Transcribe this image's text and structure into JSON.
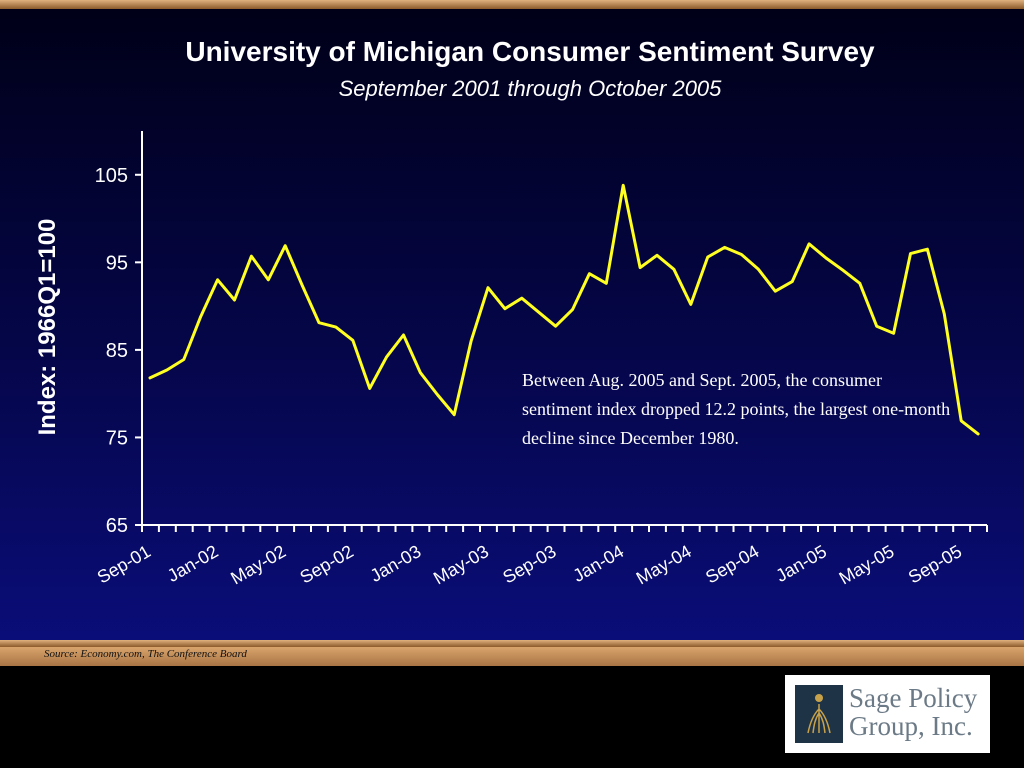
{
  "chart_data": {
    "type": "line",
    "title": "University of Michigan Consumer Sentiment Survey",
    "subtitle": "September 2001 through October 2005",
    "ylabel": "Index: 1966Q1=100",
    "xlabel": "",
    "ylim": [
      65,
      110
    ],
    "yticks": [
      65,
      75,
      85,
      95,
      105
    ],
    "x": [
      "Sep-01",
      "Oct-01",
      "Nov-01",
      "Dec-01",
      "Jan-02",
      "Feb-02",
      "Mar-02",
      "Apr-02",
      "May-02",
      "Jun-02",
      "Jul-02",
      "Aug-02",
      "Sep-02",
      "Oct-02",
      "Nov-02",
      "Dec-02",
      "Jan-03",
      "Feb-03",
      "Mar-03",
      "Apr-03",
      "May-03",
      "Jun-03",
      "Jul-03",
      "Aug-03",
      "Sep-03",
      "Oct-03",
      "Nov-03",
      "Dec-03",
      "Jan-04",
      "Feb-04",
      "Mar-04",
      "Apr-04",
      "May-04",
      "Jun-04",
      "Jul-04",
      "Aug-04",
      "Sep-04",
      "Oct-04",
      "Nov-04",
      "Dec-04",
      "Jan-05",
      "Feb-05",
      "Mar-05",
      "Apr-05",
      "May-05",
      "Jun-05",
      "Jul-05",
      "Aug-05",
      "Sep-05",
      "Oct-05"
    ],
    "xtick_labels": [
      "Sep-01",
      "Jan-02",
      "May-02",
      "Sep-02",
      "Jan-03",
      "May-03",
      "Sep-03",
      "Jan-04",
      "May-04",
      "Sep-04",
      "Jan-05",
      "May-05",
      "Sep-05"
    ],
    "series": [
      {
        "values": [
          81.8,
          82.7,
          83.9,
          88.8,
          93.0,
          90.7,
          95.7,
          93.0,
          96.9,
          92.4,
          88.1,
          87.6,
          86.1,
          80.6,
          84.2,
          86.7,
          82.4,
          79.9,
          77.6,
          86.0,
          92.1,
          89.7,
          90.9,
          89.3,
          87.7,
          89.6,
          93.7,
          92.6,
          103.8,
          94.4,
          95.8,
          94.2,
          90.2,
          95.6,
          96.7,
          95.9,
          94.2,
          91.7,
          92.8,
          97.1,
          95.5,
          94.1,
          92.6,
          87.7,
          86.9,
          96.0,
          96.5,
          89.1,
          76.9,
          75.4
        ],
        "color": "#ffff22"
      }
    ],
    "annotation": "Between Aug. 2005 and Sept. 2005, the consumer sentiment index dropped 12.2 points, the largest one-month decline since December 1980.",
    "grid": false,
    "legend": "none"
  },
  "footer": {
    "source": "Source: Economy.com, The Conference Board",
    "logo_line1": "Sage Policy",
    "logo_line2": "Group, Inc."
  },
  "colors": {
    "line": "#ffff22",
    "text": "#ffffff",
    "axis": "#ffffff"
  }
}
